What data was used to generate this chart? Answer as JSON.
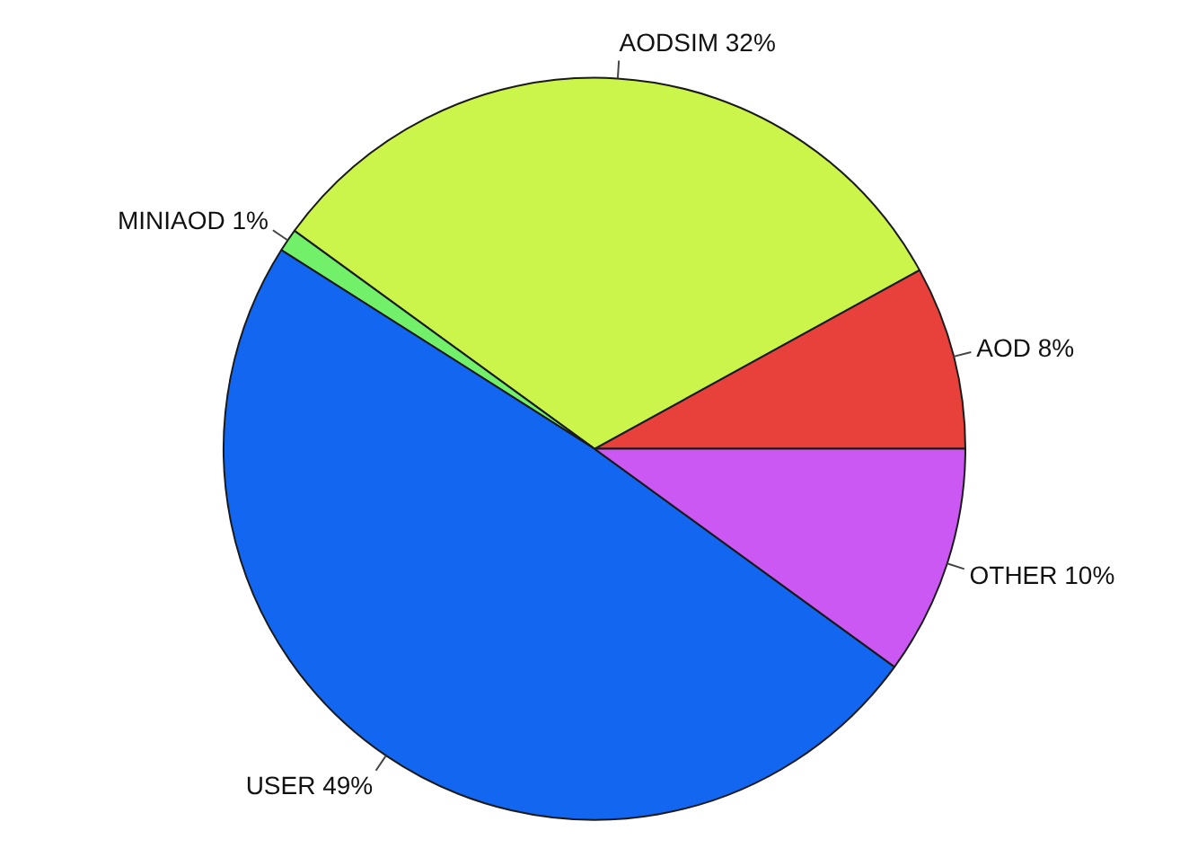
{
  "chart_data": {
    "type": "pie",
    "categories": [
      "AOD",
      "AODSIM",
      "MINIAOD",
      "USER",
      "OTHER"
    ],
    "values": [
      8,
      32,
      1,
      49,
      10
    ],
    "value_labels": [
      "8%",
      "32%",
      "1%",
      "49%",
      "10%"
    ],
    "colors": [
      "#e8403a",
      "#ccf54b",
      "#72f06a",
      "#1366f0",
      "#cc58f3"
    ]
  }
}
